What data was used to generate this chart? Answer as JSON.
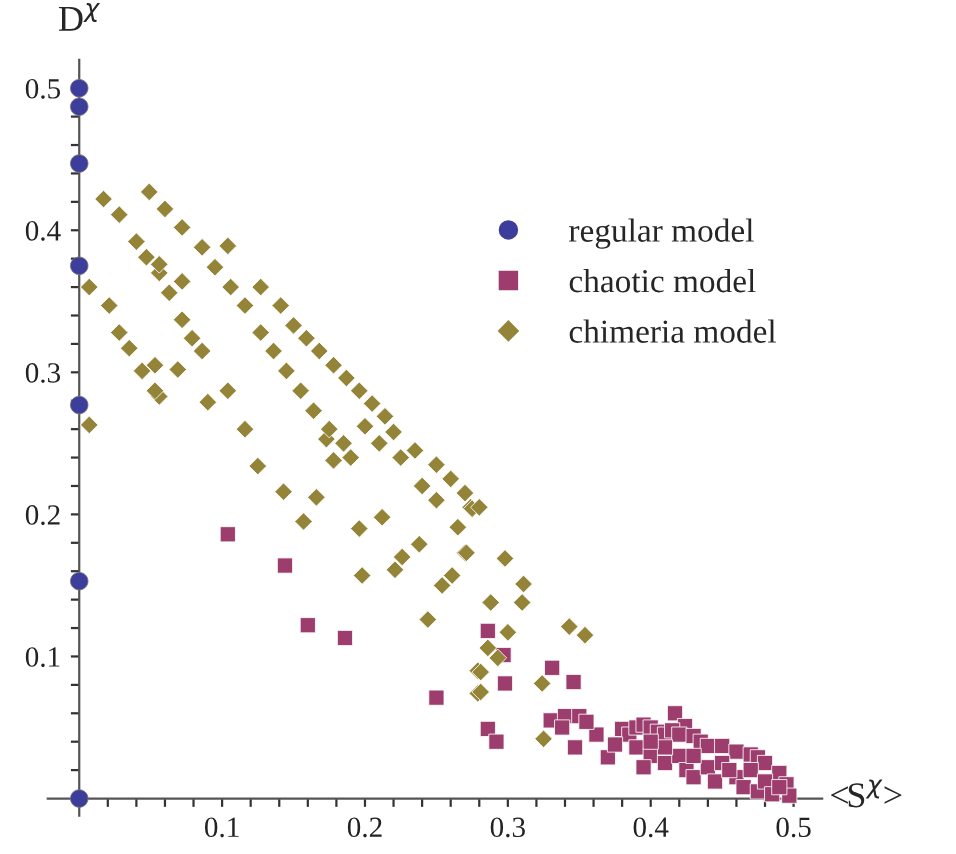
{
  "chart_data": {
    "type": "scatter",
    "xlabel": "<S$^{χ}$>",
    "ylabel": "D$^{χ}$",
    "xlim": [
      -0.022,
      0.52
    ],
    "ylim": [
      -0.012,
      0.52
    ],
    "xticks": [
      {
        "value": 0.02,
        "label": null
      },
      {
        "value": 0.04,
        "label": null
      },
      {
        "value": 0.06,
        "label": null
      },
      {
        "value": 0.08,
        "label": null
      },
      0.1,
      {
        "value": 0.12,
        "label": null
      },
      {
        "value": 0.14,
        "label": null
      },
      {
        "value": 0.16,
        "label": null
      },
      {
        "value": 0.18,
        "label": null
      },
      0.2,
      {
        "value": 0.22,
        "label": null
      },
      {
        "value": 0.24,
        "label": null
      },
      {
        "value": 0.26,
        "label": null
      },
      {
        "value": 0.28,
        "label": null
      },
      0.3,
      {
        "value": 0.32,
        "label": null
      },
      {
        "value": 0.34,
        "label": null
      },
      {
        "value": 0.36,
        "label": null
      },
      {
        "value": 0.38,
        "label": null
      },
      0.4,
      {
        "value": 0.42,
        "label": null
      },
      {
        "value": 0.44,
        "label": null
      },
      {
        "value": 0.46,
        "label": null
      },
      {
        "value": 0.48,
        "label": null
      },
      0.5
    ],
    "yticks": [
      {
        "value": 0.02,
        "label": null
      },
      {
        "value": 0.04,
        "label": null
      },
      {
        "value": 0.06,
        "label": null
      },
      {
        "value": 0.08,
        "label": null
      },
      0.1,
      {
        "value": 0.12,
        "label": null
      },
      {
        "value": 0.14,
        "label": null
      },
      {
        "value": 0.16,
        "label": null
      },
      {
        "value": 0.18,
        "label": null
      },
      0.2,
      {
        "value": 0.22,
        "label": null
      },
      {
        "value": 0.24,
        "label": null
      },
      {
        "value": 0.26,
        "label": null
      },
      {
        "value": 0.28,
        "label": null
      },
      0.3,
      {
        "value": 0.32,
        "label": null
      },
      {
        "value": 0.34,
        "label": null
      },
      {
        "value": 0.36,
        "label": null
      },
      {
        "value": 0.38,
        "label": null
      },
      0.4,
      {
        "value": 0.42,
        "label": null
      },
      {
        "value": 0.44,
        "label": null
      },
      {
        "value": 0.46,
        "label": null
      },
      {
        "value": 0.48,
        "label": null
      },
      0.5
    ],
    "legend": "top right",
    "series": [
      {
        "name": "regular model",
        "color": "#3d3d9c",
        "marker": "circle",
        "x": [
          0,
          0,
          0,
          0,
          0,
          0,
          0
        ],
        "values": [
          0.5,
          0.487,
          0.447,
          0.375,
          0.277,
          0.153,
          0.0
        ]
      },
      {
        "name": "chaotic model",
        "color": "#9c3d6e",
        "marker": "square",
        "x": [
          0.104,
          0.144,
          0.16,
          0.186,
          0.25,
          0.286,
          0.297,
          0.298,
          0.286,
          0.292,
          0.331,
          0.346,
          0.347,
          0.362,
          0.37,
          0.33,
          0.34,
          0.35,
          0.355,
          0.338,
          0.417,
          0.424,
          0.38,
          0.385,
          0.39,
          0.395,
          0.4,
          0.405,
          0.41,
          0.415,
          0.42,
          0.43,
          0.435,
          0.44,
          0.45,
          0.46,
          0.47,
          0.475,
          0.48,
          0.49,
          0.495,
          0.497,
          0.39,
          0.4,
          0.395,
          0.41,
          0.42,
          0.425,
          0.43,
          0.44,
          0.445,
          0.45,
          0.46,
          0.465,
          0.47,
          0.475,
          0.48,
          0.485,
          0.49,
          0.41,
          0.4,
          0.43,
          0.455,
          0.375
        ],
        "values": [
          0.186,
          0.164,
          0.122,
          0.113,
          0.071,
          0.118,
          0.101,
          0.081,
          0.049,
          0.04,
          0.092,
          0.082,
          0.036,
          0.045,
          0.029,
          0.055,
          0.058,
          0.058,
          0.054,
          0.05,
          0.06,
          0.051,
          0.049,
          0.045,
          0.05,
          0.052,
          0.05,
          0.047,
          0.045,
          0.048,
          0.045,
          0.044,
          0.04,
          0.037,
          0.037,
          0.033,
          0.031,
          0.029,
          0.025,
          0.018,
          0.01,
          0.002,
          0.036,
          0.03,
          0.022,
          0.025,
          0.03,
          0.02,
          0.015,
          0.022,
          0.012,
          0.025,
          0.015,
          0.008,
          0.02,
          0.005,
          0.012,
          0.003,
          0.008,
          0.036,
          0.04,
          0.03,
          0.02,
          0.038
        ]
      },
      {
        "name": "chimeria model",
        "color": "#948438",
        "marker": "diamond",
        "x": [
          0.007,
          0.056,
          0.09,
          0.116,
          0.125,
          0.143,
          0.166,
          0.157,
          0.173,
          0.178,
          0.196,
          0.198,
          0.212,
          0.221,
          0.226,
          0.238,
          0.244,
          0.254,
          0.261,
          0.265,
          0.27,
          0.274,
          0.279,
          0.279,
          0.275,
          0.271,
          0.298,
          0.311,
          0.31,
          0.288,
          0.343,
          0.354,
          0.3,
          0.286,
          0.293,
          0.281,
          0.281,
          0.324,
          0.325,
          0.007,
          0.021,
          0.028,
          0.035,
          0.017,
          0.028,
          0.04,
          0.047,
          0.056,
          0.063,
          0.072,
          0.079,
          0.086,
          0.049,
          0.06,
          0.072,
          0.086,
          0.095,
          0.106,
          0.116,
          0.127,
          0.136,
          0.145,
          0.155,
          0.164,
          0.104,
          0.056,
          0.072,
          0.053,
          0.069,
          0.044,
          0.053,
          0.104,
          0.127,
          0.141,
          0.15,
          0.159,
          0.168,
          0.178,
          0.187,
          0.196,
          0.205,
          0.214,
          0.22,
          0.235,
          0.25,
          0.26,
          0.27,
          0.28,
          0.2,
          0.21,
          0.225,
          0.24,
          0.25,
          0.175,
          0.185,
          0.19
        ],
        "values": [
          0.263,
          0.283,
          0.279,
          0.26,
          0.234,
          0.216,
          0.212,
          0.195,
          0.253,
          0.238,
          0.19,
          0.157,
          0.198,
          0.161,
          0.17,
          0.179,
          0.126,
          0.15,
          0.157,
          0.191,
          0.173,
          0.205,
          0.09,
          0.074,
          0.204,
          0.173,
          0.169,
          0.151,
          0.138,
          0.138,
          0.121,
          0.115,
          0.117,
          0.106,
          0.099,
          0.089,
          0.075,
          0.081,
          0.042,
          0.36,
          0.347,
          0.328,
          0.317,
          0.422,
          0.411,
          0.392,
          0.381,
          0.37,
          0.356,
          0.337,
          0.324,
          0.315,
          0.427,
          0.415,
          0.402,
          0.388,
          0.374,
          0.36,
          0.347,
          0.328,
          0.315,
          0.301,
          0.287,
          0.273,
          0.389,
          0.376,
          0.364,
          0.305,
          0.302,
          0.301,
          0.287,
          0.287,
          0.36,
          0.347,
          0.333,
          0.324,
          0.315,
          0.305,
          0.296,
          0.287,
          0.278,
          0.269,
          0.258,
          0.245,
          0.235,
          0.225,
          0.215,
          0.205,
          0.262,
          0.25,
          0.24,
          0.22,
          0.21,
          0.26,
          0.25,
          0.24
        ]
      }
    ]
  }
}
